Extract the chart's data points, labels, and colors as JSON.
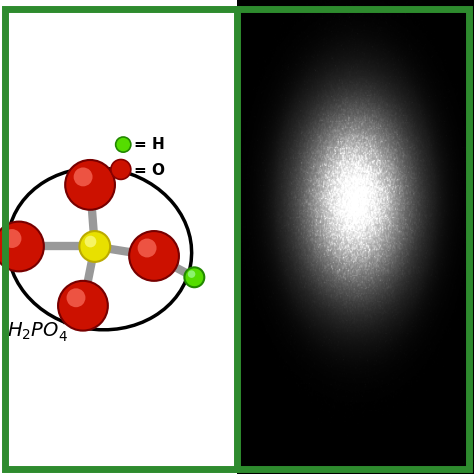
{
  "border_color": "#2e8b2e",
  "border_linewidth": 5,
  "panel_a_bg": "#ffffff",
  "panel_b_bg": "#000000",
  "legend_H_color": "#55dd00",
  "legend_O_color": "#cc1100",
  "phosphorus_color": "#e8e000",
  "oxygen_color": "#cc1100",
  "hydrogen_color": "#55dd00",
  "bond_color": "#999999",
  "formula_text": "2PO₄⁻",
  "formula_prefix": "H",
  "legend_H_text": "= H",
  "legend_O_text": "= O"
}
